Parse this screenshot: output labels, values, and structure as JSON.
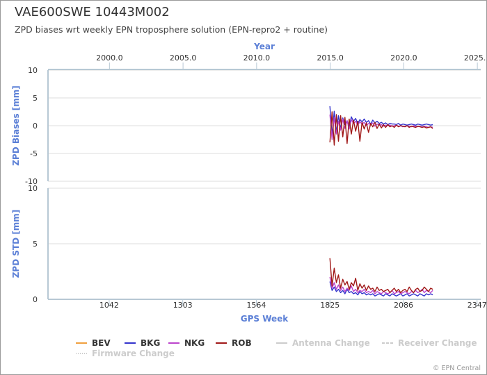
{
  "title": "VAE600SWE 10443M002",
  "subtitle": "ZPD biases wrt weekly EPN troposphere solution (EPN-repro2 + routine)",
  "credits": "© EPN Central",
  "colors": {
    "axis_label": "#5b7fd6",
    "axis_line": "#b7c8d4",
    "grid": "#dcdcdc",
    "text": "#555555",
    "BEV": "#f0a040",
    "BKG": "#3333cc",
    "NKG": "#bb44cc",
    "ROB": "#a01818",
    "event": "#cccccc"
  },
  "chart_data": [
    {
      "id": "bias",
      "type": "line",
      "ylabel": "ZPD Biases [mm]",
      "ylim": [
        -10,
        10
      ],
      "yticks": [
        -10,
        -5,
        0,
        5,
        10
      ],
      "xlim": [
        825,
        2360
      ],
      "top_axis": {
        "label": "Year",
        "ticks": [
          {
            "label": "2000.0",
            "week": 1043
          },
          {
            "label": "2005.0",
            "week": 1304
          },
          {
            "label": "2010.0",
            "week": 1565
          },
          {
            "label": "2015.0",
            "week": 1826
          },
          {
            "label": "2020.0",
            "week": 2087
          },
          {
            "label": "2025.0",
            "week": 2348
          }
        ]
      },
      "series": [
        {
          "name": "BKG",
          "start_week": 1825,
          "end_week": 2190,
          "values": [
            3.5,
            -1.8,
            2.6,
            -1.2,
            1.8,
            -0.5,
            1.4,
            0.2,
            0.9,
            -0.3,
            1.6,
            0.8,
            1.3,
            0.4,
            1.1,
            0.7,
            1.2,
            0.6,
            0.9,
            0.3,
            1.0,
            0.5,
            0.8,
            0.4,
            0.6,
            0.3,
            0.5,
            0.2,
            0.4,
            0.3,
            0.3,
            0.2,
            0.4,
            0.1,
            0.3,
            0.2,
            0.1,
            0.2,
            0.3,
            0.2,
            0.1,
            0.3,
            0.2,
            0.1,
            0.2,
            0.3,
            0.2,
            0.1,
            0.2
          ]
        },
        {
          "name": "NKG",
          "start_week": 1825,
          "end_week": 2190,
          "values": [
            2.0,
            -2.5,
            1.5,
            -1.5,
            0.8,
            -0.8,
            1.2,
            -0.5,
            0.9,
            -0.6,
            1.1,
            0.4,
            0.8,
            0.1,
            0.7,
            0.3,
            0.6,
            0.0,
            0.4,
            0.2,
            0.5,
            -0.1,
            0.3,
            0.1,
            0.2,
            -0.1,
            0.1,
            0.0,
            0.1,
            -0.1,
            0.0,
            0.1,
            -0.1,
            0.0,
            -0.2,
            -0.1,
            0.0,
            -0.1,
            -0.2,
            0.0,
            -0.1,
            -0.2,
            -0.1,
            -0.2,
            -0.1,
            -0.2,
            -0.3,
            -0.2,
            -0.3
          ]
        },
        {
          "name": "ROB",
          "start_week": 1825,
          "end_week": 2190,
          "values": [
            -3.0,
            2.5,
            -3.5,
            2.0,
            -2.8,
            1.8,
            -2.0,
            1.5,
            -3.2,
            1.2,
            -1.5,
            1.0,
            -1.0,
            0.8,
            -2.8,
            0.6,
            -0.6,
            0.5,
            -1.2,
            0.4,
            -0.2,
            0.6,
            -0.5,
            0.3,
            -0.4,
            0.2,
            -0.3,
            0.2,
            -0.2,
            0.0,
            -0.3,
            0.1,
            -0.2,
            0.0,
            -0.1,
            -0.2,
            0.0,
            -0.3,
            -0.1,
            -0.2,
            -0.3,
            -0.1,
            -0.2,
            -0.3,
            -0.2,
            -0.4,
            -0.3,
            -0.2,
            -0.5
          ]
        }
      ]
    },
    {
      "id": "std",
      "type": "line",
      "ylabel": "ZPD STD [mm]",
      "xlabel": "GPS Week",
      "ylim": [
        0,
        10
      ],
      "yticks": [
        0,
        5,
        10
      ],
      "xlim": [
        825,
        2360
      ],
      "xticks": [
        1042,
        1303,
        1564,
        1825,
        2086,
        2347
      ],
      "series": [
        {
          "name": "BKG",
          "start_week": 1825,
          "end_week": 2190,
          "values": [
            1.6,
            0.8,
            1.1,
            0.7,
            0.9,
            0.6,
            0.8,
            0.5,
            0.9,
            0.6,
            0.7,
            0.5,
            0.6,
            0.4,
            0.7,
            0.5,
            0.6,
            0.4,
            0.5,
            0.4,
            0.5,
            0.3,
            0.4,
            0.5,
            0.4,
            0.3,
            0.5,
            0.4,
            0.3,
            0.5,
            0.4,
            0.3,
            0.4,
            0.5,
            0.3,
            0.4,
            0.5,
            0.3,
            0.4,
            0.5,
            0.4,
            0.3,
            0.5,
            0.4,
            0.3,
            0.5,
            0.4,
            0.5,
            0.4
          ]
        },
        {
          "name": "NKG",
          "start_week": 1825,
          "end_week": 2190,
          "values": [
            2.0,
            1.0,
            1.5,
            0.9,
            1.3,
            0.8,
            1.1,
            0.7,
            1.0,
            0.8,
            1.2,
            0.7,
            0.9,
            0.6,
            0.8,
            0.7,
            0.9,
            0.6,
            0.7,
            0.6,
            0.8,
            0.5,
            0.7,
            0.6,
            0.5,
            0.7,
            0.6,
            0.5,
            0.6,
            0.8,
            0.5,
            0.6,
            0.7,
            0.5,
            0.6,
            0.7,
            0.6,
            0.5,
            0.7,
            0.6,
            0.8,
            0.6,
            0.7,
            0.9,
            0.6,
            0.8,
            0.7,
            0.6,
            0.8
          ]
        },
        {
          "name": "ROB",
          "start_week": 1825,
          "end_week": 2190,
          "values": [
            3.7,
            1.2,
            2.8,
            1.5,
            2.2,
            1.0,
            1.8,
            1.3,
            1.6,
            0.9,
            1.5,
            1.2,
            1.9,
            0.8,
            1.4,
            1.0,
            1.3,
            0.8,
            1.2,
            0.9,
            1.0,
            0.7,
            1.1,
            0.8,
            0.9,
            0.7,
            0.8,
            0.9,
            0.6,
            0.8,
            1.0,
            0.7,
            0.9,
            0.6,
            0.8,
            0.9,
            0.7,
            1.1,
            0.8,
            0.6,
            0.9,
            1.0,
            0.7,
            0.8,
            1.1,
            0.9,
            0.7,
            1.0,
            0.9
          ]
        }
      ]
    }
  ],
  "legend": [
    {
      "name": "BEV",
      "color": "#f0a040",
      "style": "solid",
      "active": true
    },
    {
      "name": "BKG",
      "color": "#3333cc",
      "style": "solid",
      "active": true
    },
    {
      "name": "NKG",
      "color": "#bb44cc",
      "style": "solid",
      "active": true
    },
    {
      "name": "ROB",
      "color": "#a01818",
      "style": "solid",
      "active": true
    },
    {
      "name": "Antenna Change",
      "color": "#cccccc",
      "style": "solid",
      "active": false
    },
    {
      "name": "Receiver Change",
      "color": "#cccccc",
      "style": "dash",
      "active": false
    },
    {
      "name": "Firmware Change",
      "color": "#cccccc",
      "style": "dot",
      "active": false
    }
  ]
}
